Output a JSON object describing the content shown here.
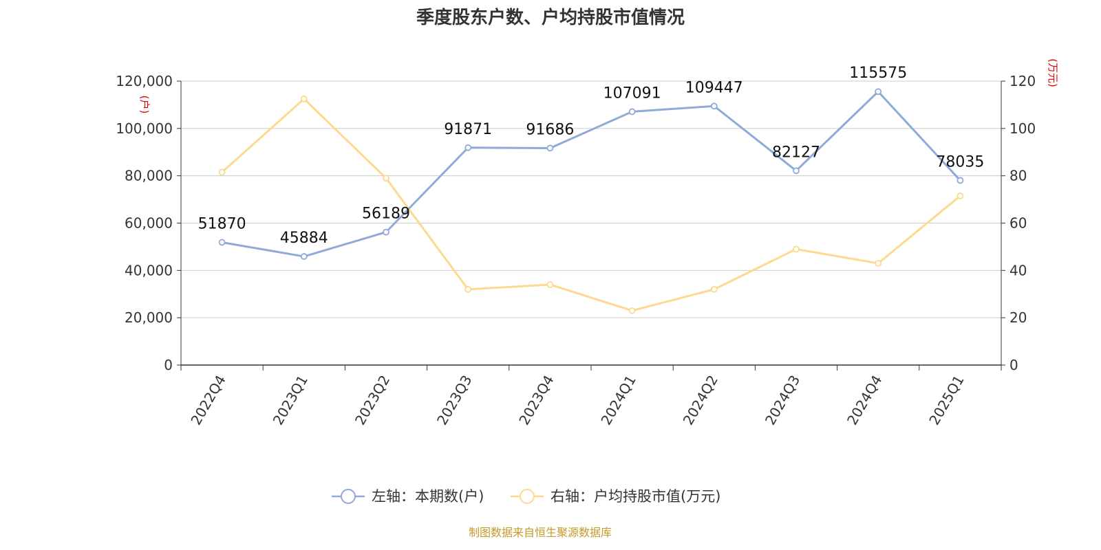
{
  "chart_data": {
    "type": "line",
    "title": "季度股东户数、户均持股市值情况",
    "categories": [
      "2022Q4",
      "2023Q1",
      "2023Q2",
      "2023Q3",
      "2023Q4",
      "2024Q1",
      "2024Q2",
      "2024Q3",
      "2024Q4",
      "2025Q1"
    ],
    "left_axis": {
      "unit": "(户)",
      "ylim": [
        0,
        120000
      ],
      "ticks": [
        0,
        20000,
        40000,
        60000,
        80000,
        100000,
        120000
      ],
      "tick_labels": [
        "0",
        "20,000",
        "40,000",
        "60,000",
        "80,000",
        "100,000",
        "120,000"
      ]
    },
    "right_axis": {
      "unit": "(万元)",
      "ylim": [
        0,
        120
      ],
      "ticks": [
        0,
        20,
        40,
        60,
        80,
        100,
        120
      ],
      "tick_labels": [
        "0",
        "20",
        "40",
        "60",
        "80",
        "100",
        "120"
      ]
    },
    "series": [
      {
        "name": "左轴：本期数(户)",
        "axis": "left",
        "color": "#8eaad8",
        "values": [
          51870,
          45884,
          56189,
          91871,
          91686,
          107091,
          109447,
          82127,
          115575,
          78035
        ],
        "labels": [
          "51870",
          "45884",
          "56189",
          "91871",
          "91686",
          "107091",
          "109447",
          "82127",
          "115575",
          "78035"
        ]
      },
      {
        "name": "右轴：户均持股市值(万元)",
        "axis": "right",
        "color": "#fcd98e",
        "values": [
          81.5,
          112.5,
          79,
          32,
          34,
          23,
          32,
          49,
          43,
          71.5
        ]
      }
    ],
    "grid": true,
    "legend_position": "bottom-center"
  },
  "source": "制图数据来自恒生聚源数据库"
}
